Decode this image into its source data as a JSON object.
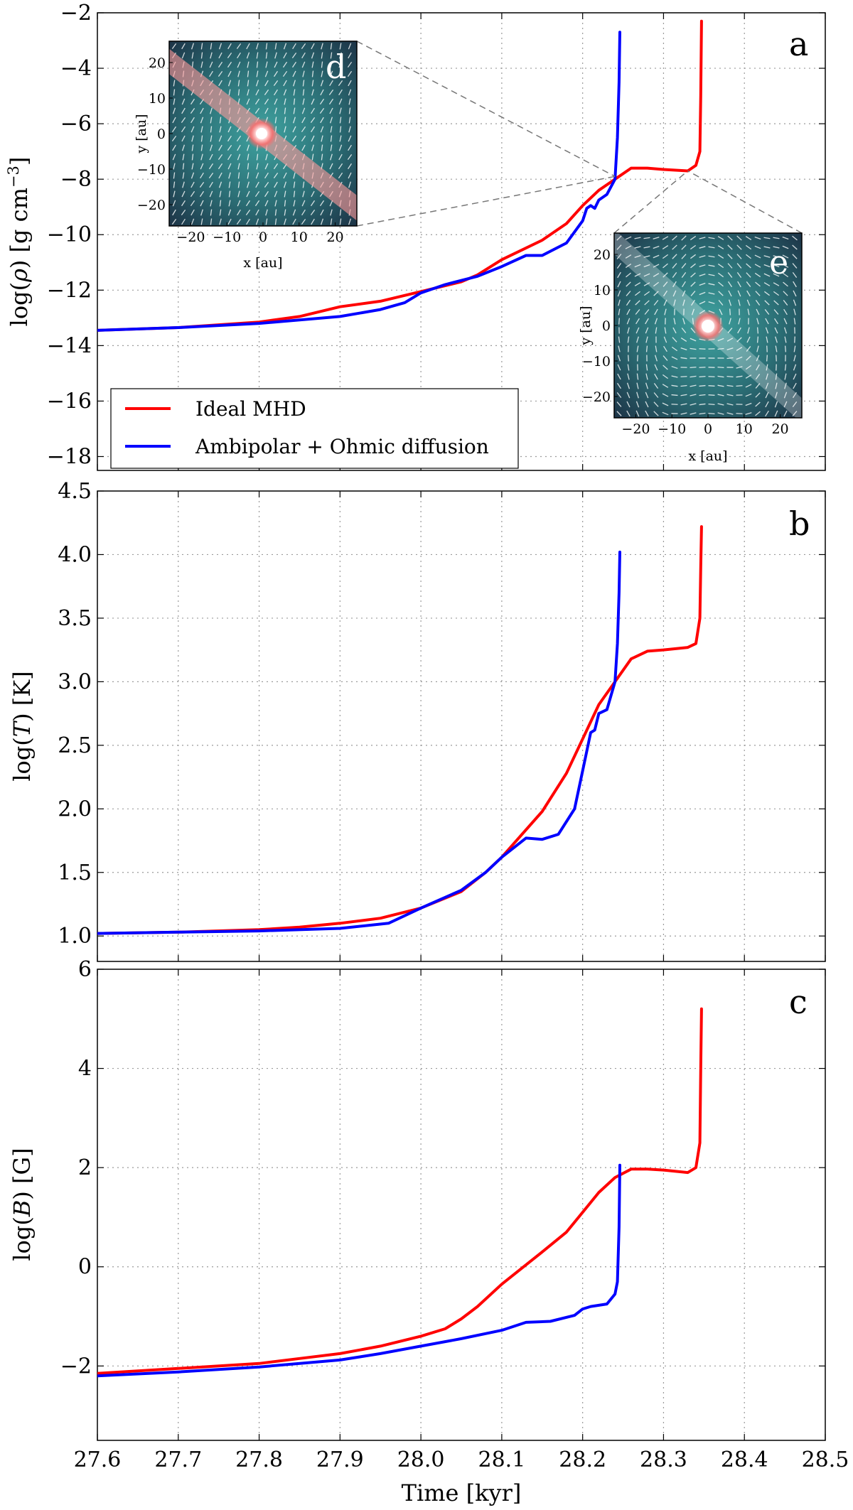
{
  "chart_data": [
    {
      "panel": "a",
      "type": "line",
      "ylabel_parts": [
        "log(",
        "ρ",
        ") [g cm",
        "−3",
        "]"
      ],
      "xlabel": "",
      "xlim": [
        27.6,
        28.5
      ],
      "ylim": [
        -18.5,
        -2
      ],
      "yticks": [
        -2,
        -4,
        -6,
        -8,
        -10,
        -12,
        -14,
        -16,
        -18
      ],
      "ytick_labels": [
        "−2",
        "−4",
        "−6",
        "−8",
        "−10",
        "−12",
        "−14",
        "−16",
        "−18"
      ],
      "grid": true,
      "legend_position": "lower-left",
      "series": [
        {
          "name": "Ideal MHD",
          "color": "#ff0000",
          "points": [
            [
              27.6,
              -13.45
            ],
            [
              27.7,
              -13.35
            ],
            [
              27.8,
              -13.15
            ],
            [
              27.85,
              -12.95
            ],
            [
              27.9,
              -12.6
            ],
            [
              27.95,
              -12.4
            ],
            [
              28.0,
              -12.05
            ],
            [
              28.05,
              -11.7
            ],
            [
              28.07,
              -11.45
            ],
            [
              28.1,
              -10.9
            ],
            [
              28.15,
              -10.2
            ],
            [
              28.18,
              -9.6
            ],
            [
              28.2,
              -8.95
            ],
            [
              28.22,
              -8.4
            ],
            [
              28.24,
              -8.0
            ],
            [
              28.26,
              -7.6
            ],
            [
              28.28,
              -7.6
            ],
            [
              28.3,
              -7.65
            ],
            [
              28.33,
              -7.7
            ],
            [
              28.34,
              -7.5
            ],
            [
              28.345,
              -7.0
            ],
            [
              28.346,
              -5.0
            ],
            [
              28.347,
              -2.3
            ]
          ]
        },
        {
          "name": "Ambipolar + Ohmic diffusion",
          "color": "#0000ff",
          "points": [
            [
              27.6,
              -13.45
            ],
            [
              27.7,
              -13.35
            ],
            [
              27.8,
              -13.2
            ],
            [
              27.9,
              -12.95
            ],
            [
              27.95,
              -12.7
            ],
            [
              27.98,
              -12.45
            ],
            [
              28.0,
              -12.1
            ],
            [
              28.03,
              -11.8
            ],
            [
              28.07,
              -11.5
            ],
            [
              28.1,
              -11.15
            ],
            [
              28.13,
              -10.75
            ],
            [
              28.15,
              -10.75
            ],
            [
              28.18,
              -10.3
            ],
            [
              28.2,
              -9.5
            ],
            [
              28.205,
              -9.05
            ],
            [
              28.21,
              -8.95
            ],
            [
              28.215,
              -9.05
            ],
            [
              28.22,
              -8.75
            ],
            [
              28.23,
              -8.55
            ],
            [
              28.24,
              -8.0
            ],
            [
              28.243,
              -6.5
            ],
            [
              28.245,
              -4.5
            ],
            [
              28.246,
              -2.7
            ]
          ]
        }
      ],
      "insets": [
        {
          "letter": "d",
          "xlabel": "x [au]",
          "ylabel": "y [au]",
          "xticks": [
            -20,
            -10,
            0,
            10,
            20
          ],
          "yticks": [
            20,
            10,
            0,
            -10,
            -20
          ],
          "xtick_labels": [
            "−20",
            "−10",
            "0",
            "10",
            "20"
          ],
          "ytick_labels": [
            "20",
            "10",
            "0",
            "−10",
            "−20"
          ],
          "disk_angle_deg": 38,
          "zoom_time_kyr": 28.24,
          "zoom_log_rho": -7.9
        },
        {
          "letter": "e",
          "xlabel": "x [au]",
          "ylabel": "y [au]",
          "xticks": [
            -20,
            -10,
            0,
            10,
            20
          ],
          "yticks": [
            20,
            10,
            0,
            -10,
            -20
          ],
          "xtick_labels": [
            "−20",
            "−10",
            "0",
            "10",
            "20"
          ],
          "ytick_labels": [
            "20",
            "10",
            "0",
            "−10",
            "−20"
          ],
          "disk_angle_deg": 42,
          "zoom_time_kyr": 28.33,
          "zoom_log_rho": -7.7
        }
      ]
    },
    {
      "panel": "b",
      "type": "line",
      "ylabel_parts": [
        "log(",
        "T",
        ") [K]"
      ],
      "xlabel": "",
      "xlim": [
        27.6,
        28.5
      ],
      "ylim": [
        0.8,
        4.5
      ],
      "yticks": [
        1.0,
        1.5,
        2.0,
        2.5,
        3.0,
        3.5,
        4.0,
        4.5
      ],
      "ytick_labels": [
        "1.0",
        "1.5",
        "2.0",
        "2.5",
        "3.0",
        "3.5",
        "4.0",
        "4.5"
      ],
      "grid": true,
      "series": [
        {
          "name": "Ideal MHD",
          "color": "#ff0000",
          "points": [
            [
              27.6,
              1.02
            ],
            [
              27.7,
              1.03
            ],
            [
              27.8,
              1.05
            ],
            [
              27.85,
              1.07
            ],
            [
              27.9,
              1.1
            ],
            [
              27.95,
              1.14
            ],
            [
              28.0,
              1.22
            ],
            [
              28.05,
              1.35
            ],
            [
              28.08,
              1.5
            ],
            [
              28.1,
              1.62
            ],
            [
              28.15,
              1.98
            ],
            [
              28.18,
              2.28
            ],
            [
              28.2,
              2.55
            ],
            [
              28.22,
              2.82
            ],
            [
              28.24,
              3.0
            ],
            [
              28.26,
              3.18
            ],
            [
              28.28,
              3.24
            ],
            [
              28.3,
              3.25
            ],
            [
              28.33,
              3.27
            ],
            [
              28.34,
              3.3
            ],
            [
              28.345,
              3.5
            ],
            [
              28.346,
              3.9
            ],
            [
              28.347,
              4.22
            ]
          ]
        },
        {
          "name": "Ambipolar + Ohmic diffusion",
          "color": "#0000ff",
          "points": [
            [
              27.6,
              1.02
            ],
            [
              27.7,
              1.03
            ],
            [
              27.8,
              1.04
            ],
            [
              27.9,
              1.06
            ],
            [
              27.96,
              1.1
            ],
            [
              28.0,
              1.22
            ],
            [
              28.05,
              1.36
            ],
            [
              28.08,
              1.5
            ],
            [
              28.1,
              1.62
            ],
            [
              28.13,
              1.77
            ],
            [
              28.15,
              1.76
            ],
            [
              28.17,
              1.8
            ],
            [
              28.19,
              2.0
            ],
            [
              28.2,
              2.3
            ],
            [
              28.21,
              2.6
            ],
            [
              28.215,
              2.62
            ],
            [
              28.22,
              2.75
            ],
            [
              28.23,
              2.78
            ],
            [
              28.24,
              3.0
            ],
            [
              28.243,
              3.3
            ],
            [
              28.245,
              3.7
            ],
            [
              28.246,
              4.02
            ]
          ]
        }
      ]
    },
    {
      "panel": "c",
      "type": "line",
      "ylabel_parts": [
        "log(",
        "B",
        ") [G]"
      ],
      "xlabel": "Time [kyr]",
      "xlim": [
        27.6,
        28.5
      ],
      "ylim": [
        -3.5,
        6
      ],
      "yticks": [
        -2,
        0,
        2,
        4,
        6
      ],
      "ytick_labels": [
        "−2",
        "0",
        "2",
        "4",
        "6"
      ],
      "xticks": [
        27.6,
        27.7,
        27.8,
        27.9,
        28.0,
        28.1,
        28.2,
        28.3,
        28.4,
        28.5
      ],
      "xtick_labels": [
        "27.6",
        "27.7",
        "27.8",
        "27.9",
        "28.0",
        "28.1",
        "28.2",
        "28.3",
        "28.4",
        "28.5"
      ],
      "grid": true,
      "series": [
        {
          "name": "Ideal MHD",
          "color": "#ff0000",
          "points": [
            [
              27.6,
              -2.15
            ],
            [
              27.7,
              -2.05
            ],
            [
              27.8,
              -1.95
            ],
            [
              27.85,
              -1.85
            ],
            [
              27.9,
              -1.75
            ],
            [
              27.95,
              -1.6
            ],
            [
              28.0,
              -1.4
            ],
            [
              28.03,
              -1.25
            ],
            [
              28.05,
              -1.05
            ],
            [
              28.07,
              -0.8
            ],
            [
              28.1,
              -0.35
            ],
            [
              28.15,
              0.3
            ],
            [
              28.18,
              0.7
            ],
            [
              28.2,
              1.1
            ],
            [
              28.22,
              1.5
            ],
            [
              28.24,
              1.8
            ],
            [
              28.26,
              1.97
            ],
            [
              28.28,
              1.97
            ],
            [
              28.3,
              1.95
            ],
            [
              28.33,
              1.9
            ],
            [
              28.34,
              2.0
            ],
            [
              28.345,
              2.5
            ],
            [
              28.346,
              4.0
            ],
            [
              28.347,
              5.2
            ]
          ]
        },
        {
          "name": "Ambipolar + Ohmic diffusion",
          "color": "#0000ff",
          "points": [
            [
              27.6,
              -2.2
            ],
            [
              27.7,
              -2.12
            ],
            [
              27.8,
              -2.02
            ],
            [
              27.9,
              -1.88
            ],
            [
              27.95,
              -1.75
            ],
            [
              28.0,
              -1.6
            ],
            [
              28.05,
              -1.45
            ],
            [
              28.1,
              -1.28
            ],
            [
              28.13,
              -1.12
            ],
            [
              28.16,
              -1.1
            ],
            [
              28.19,
              -0.98
            ],
            [
              28.2,
              -0.85
            ],
            [
              28.21,
              -0.8
            ],
            [
              28.23,
              -0.75
            ],
            [
              28.24,
              -0.55
            ],
            [
              28.243,
              -0.3
            ],
            [
              28.245,
              0.8
            ],
            [
              28.246,
              2.05
            ]
          ]
        }
      ]
    }
  ]
}
